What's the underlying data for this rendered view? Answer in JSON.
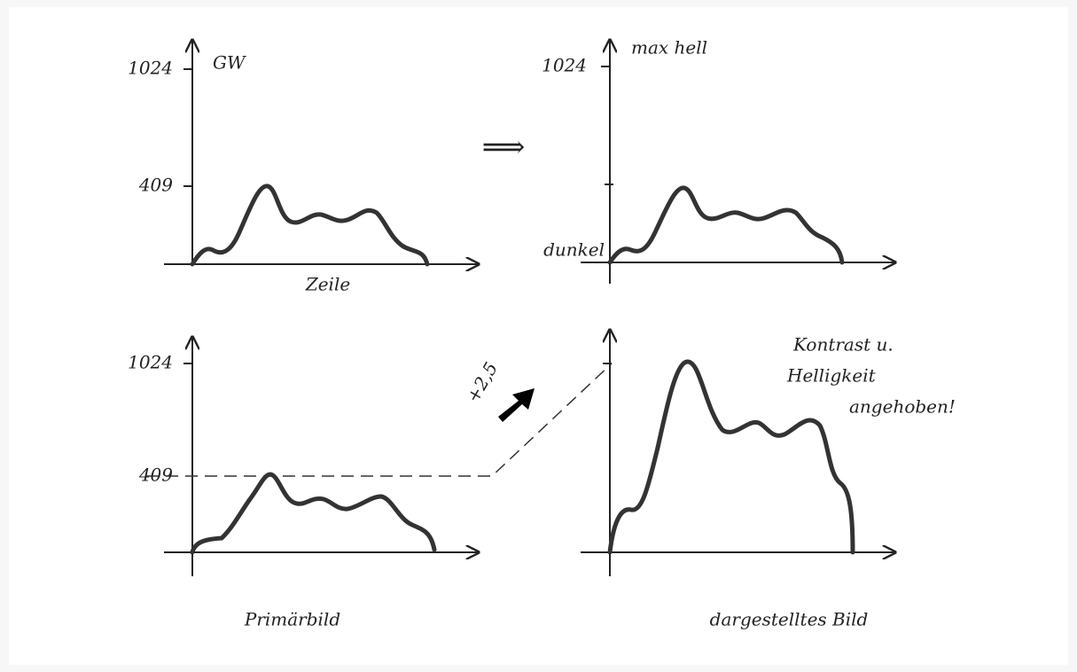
{
  "panels": [
    {
      "y_labels": [
        "1024",
        "409"
      ],
      "axis_label": "GW",
      "x_label": "Zeile"
    },
    {
      "y_labels": [
        "1024"
      ],
      "axis_label": "max hell",
      "origin_label": "dunkel"
    },
    {
      "y_labels": [
        "1024",
        "409"
      ],
      "caption": "Primärbild"
    },
    {
      "caption": "dargestelltes Bild"
    }
  ],
  "factor": "+2,5",
  "note": [
    "Kontrast u.",
    "Helligkeit",
    "angehoben!"
  ]
}
